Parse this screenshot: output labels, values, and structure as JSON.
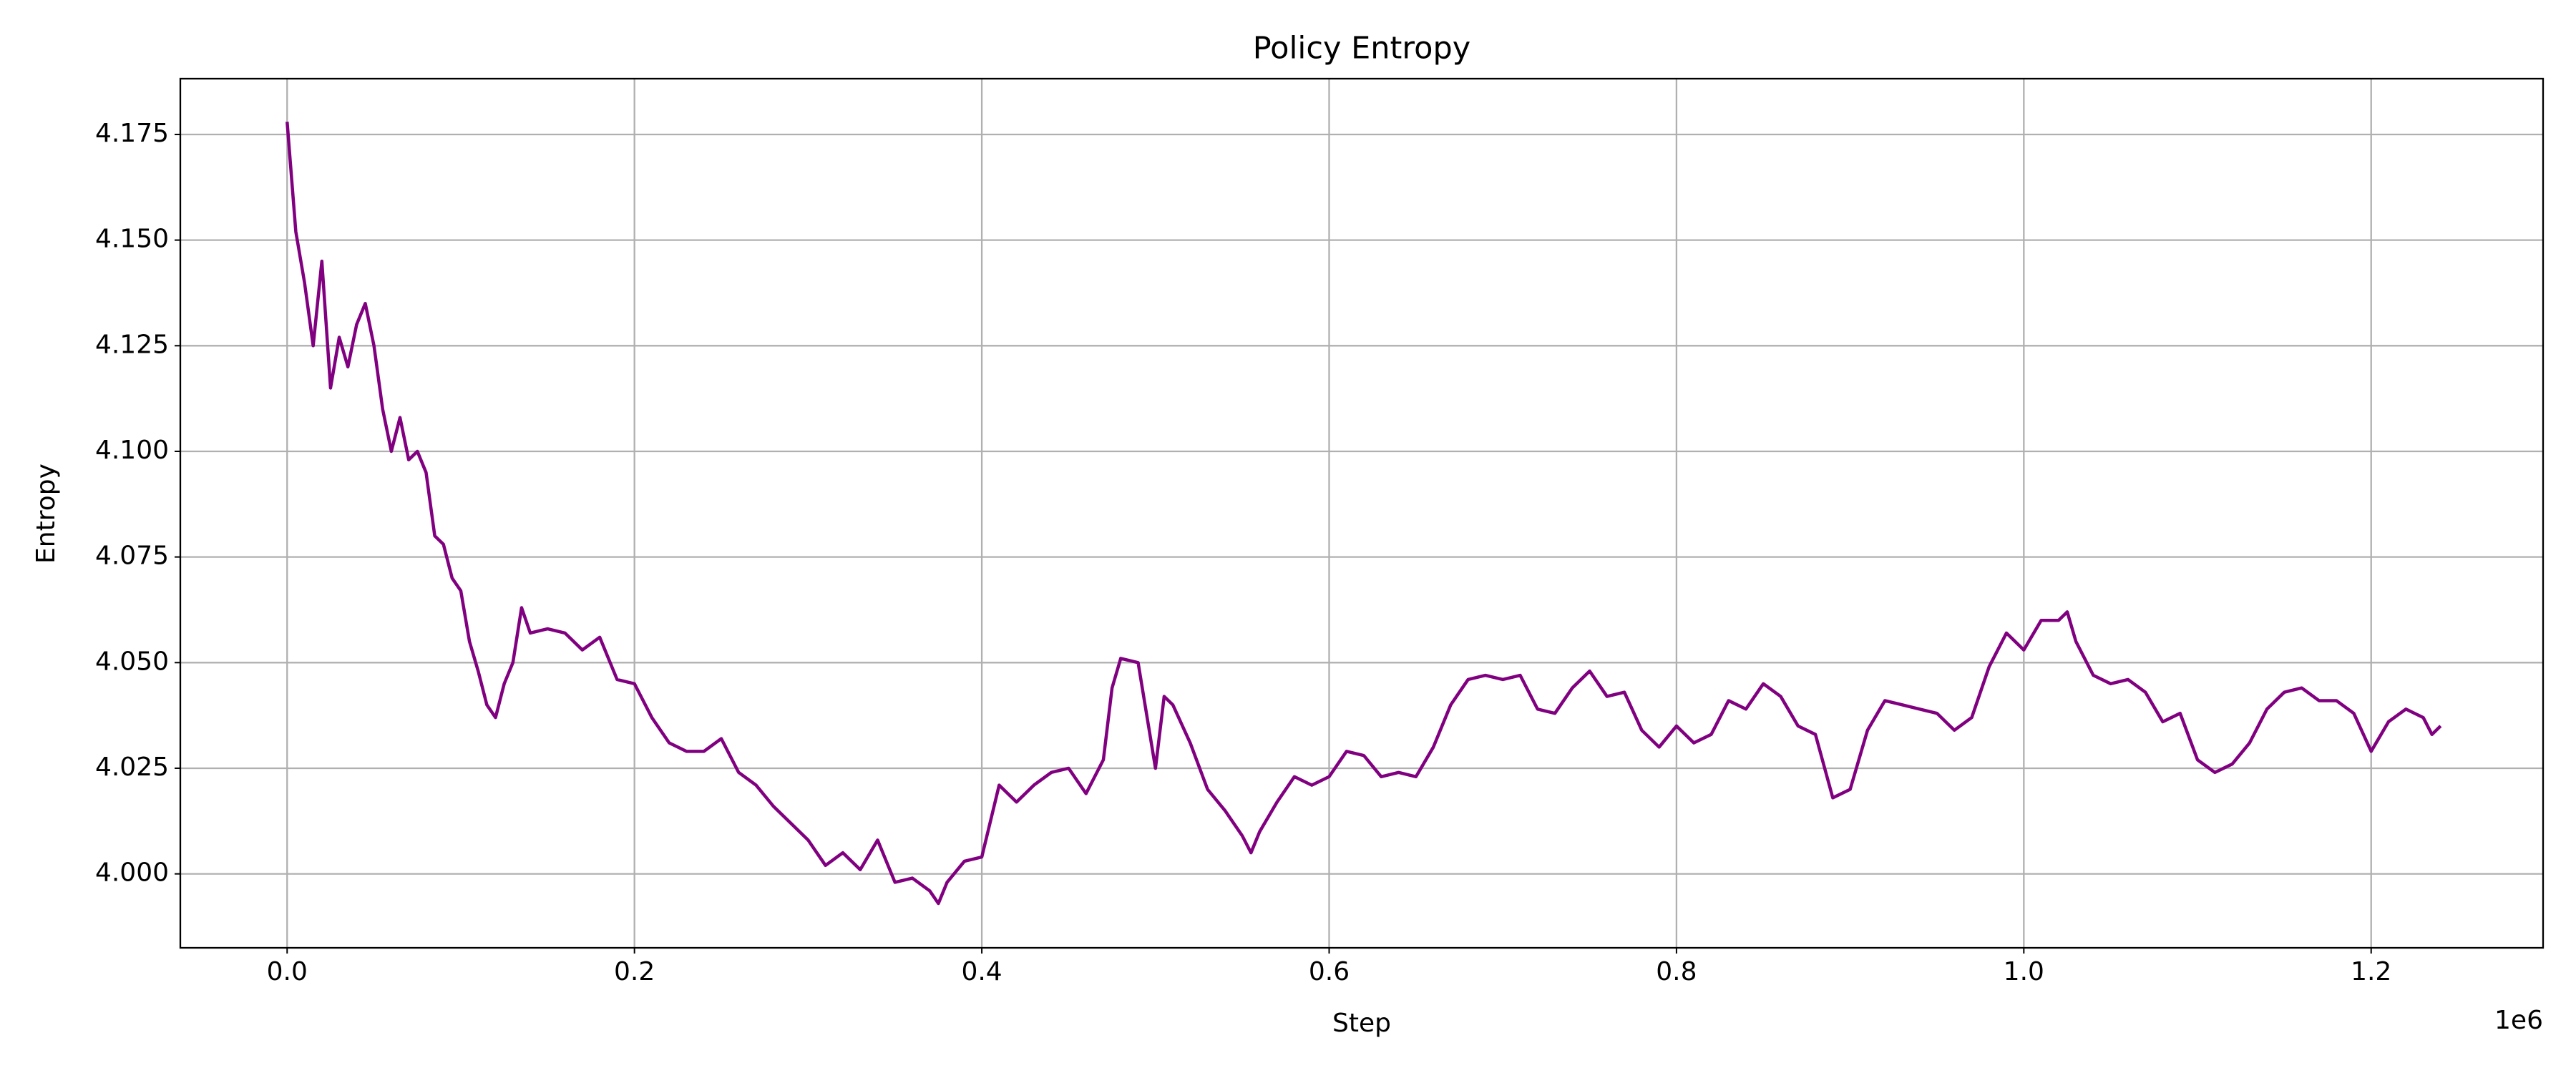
{
  "chart_data": {
    "type": "line",
    "title": "Policy Entropy",
    "x_label": "Step",
    "y_label": "Entropy",
    "x_offset_label": "1e6",
    "xlim": [
      -61500,
      1299000
    ],
    "ylim": [
      3.9825,
      4.1882
    ],
    "xticks": [
      {
        "value": 0,
        "label": "0.0"
      },
      {
        "value": 200000,
        "label": "0.2"
      },
      {
        "value": 400000,
        "label": "0.4"
      },
      {
        "value": 600000,
        "label": "0.6"
      },
      {
        "value": 800000,
        "label": "0.8"
      },
      {
        "value": 1000000,
        "label": "1.0"
      },
      {
        "value": 1200000,
        "label": "1.2"
      }
    ],
    "yticks": [
      {
        "value": 4.0,
        "label": "4.000"
      },
      {
        "value": 4.025,
        "label": "4.025"
      },
      {
        "value": 4.05,
        "label": "4.050"
      },
      {
        "value": 4.075,
        "label": "4.075"
      },
      {
        "value": 4.1,
        "label": "4.100"
      },
      {
        "value": 4.125,
        "label": "4.125"
      },
      {
        "value": 4.15,
        "label": "4.150"
      },
      {
        "value": 4.175,
        "label": "4.175"
      }
    ],
    "grid": true,
    "x": [
      0,
      5000,
      10000,
      15000,
      20000,
      25000,
      30000,
      35000,
      40000,
      45000,
      50000,
      55000,
      60000,
      65000,
      70000,
      75000,
      80000,
      85000,
      90000,
      95000,
      100000,
      105000,
      110000,
      115000,
      120000,
      125000,
      130000,
      135000,
      140000,
      150000,
      160000,
      170000,
      180000,
      190000,
      200000,
      210000,
      220000,
      230000,
      240000,
      250000,
      260000,
      270000,
      280000,
      290000,
      300000,
      310000,
      320000,
      330000,
      340000,
      350000,
      360000,
      370000,
      375000,
      380000,
      390000,
      400000,
      410000,
      420000,
      430000,
      440000,
      450000,
      460000,
      470000,
      475000,
      480000,
      490000,
      500000,
      505000,
      510000,
      520000,
      530000,
      540000,
      550000,
      555000,
      560000,
      570000,
      580000,
      590000,
      600000,
      610000,
      620000,
      630000,
      640000,
      650000,
      660000,
      670000,
      680000,
      690000,
      700000,
      710000,
      720000,
      730000,
      740000,
      750000,
      760000,
      770000,
      780000,
      790000,
      800000,
      810000,
      820000,
      830000,
      840000,
      850000,
      860000,
      870000,
      880000,
      890000,
      900000,
      910000,
      920000,
      930000,
      940000,
      950000,
      960000,
      970000,
      980000,
      990000,
      1000000,
      1010000,
      1020000,
      1025000,
      1030000,
      1040000,
      1050000,
      1060000,
      1070000,
      1080000,
      1090000,
      1100000,
      1110000,
      1120000,
      1130000,
      1140000,
      1150000,
      1160000,
      1170000,
      1180000,
      1190000,
      1200000,
      1210000,
      1220000,
      1230000,
      1235000,
      1240000
    ],
    "series": [
      {
        "name": "Entropy",
        "color": "#800080",
        "values": [
          4.178,
          4.152,
          4.14,
          4.125,
          4.145,
          4.115,
          4.127,
          4.12,
          4.13,
          4.135,
          4.125,
          4.11,
          4.1,
          4.108,
          4.098,
          4.1,
          4.095,
          4.08,
          4.078,
          4.07,
          4.067,
          4.055,
          4.048,
          4.04,
          4.037,
          4.045,
          4.05,
          4.063,
          4.057,
          4.058,
          4.057,
          4.053,
          4.056,
          4.046,
          4.045,
          4.037,
          4.031,
          4.029,
          4.029,
          4.032,
          4.024,
          4.021,
          4.016,
          4.012,
          4.008,
          4.002,
          4.005,
          4.001,
          4.008,
          3.998,
          3.999,
          3.996,
          3.993,
          3.998,
          4.003,
          4.004,
          4.021,
          4.017,
          4.021,
          4.024,
          4.025,
          4.019,
          4.027,
          4.044,
          4.051,
          4.05,
          4.025,
          4.042,
          4.04,
          4.031,
          4.02,
          4.015,
          4.009,
          4.005,
          4.01,
          4.017,
          4.023,
          4.021,
          4.023,
          4.029,
          4.028,
          4.023,
          4.024,
          4.023,
          4.03,
          4.04,
          4.046,
          4.047,
          4.046,
          4.047,
          4.039,
          4.038,
          4.044,
          4.048,
          4.042,
          4.043,
          4.034,
          4.03,
          4.035,
          4.031,
          4.033,
          4.041,
          4.039,
          4.045,
          4.042,
          4.035,
          4.033,
          4.018,
          4.02,
          4.034,
          4.041,
          4.04,
          4.039,
          4.038,
          4.034,
          4.037,
          4.049,
          4.057,
          4.053,
          4.06,
          4.06,
          4.062,
          4.055,
          4.047,
          4.045,
          4.046,
          4.043,
          4.036,
          4.038,
          4.027,
          4.024,
          4.026,
          4.031,
          4.039,
          4.043,
          4.044,
          4.041,
          4.041,
          4.038,
          4.029,
          4.036,
          4.039,
          4.037,
          4.033,
          4.035
        ]
      }
    ]
  }
}
